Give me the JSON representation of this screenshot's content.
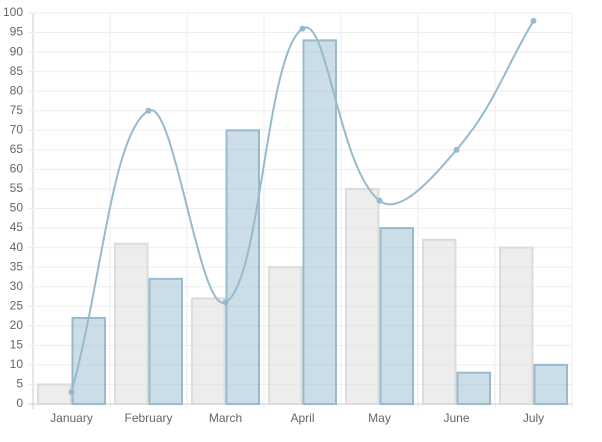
{
  "chart_data": {
    "type": "bar",
    "categories": [
      "January",
      "February",
      "March",
      "April",
      "May",
      "June",
      "July"
    ],
    "series": [
      {
        "type": "bar",
        "color": "#dcdcdc",
        "values": [
          5,
          41,
          27,
          35,
          55,
          42,
          40
        ]
      },
      {
        "type": "bar",
        "color": "#97bbcd",
        "values": [
          22,
          32,
          70,
          93,
          45,
          8,
          10
        ]
      },
      {
        "type": "line",
        "color": "#97bbcd",
        "values": [
          3,
          75,
          26,
          96,
          52,
          65,
          98
        ]
      }
    ],
    "ylim": [
      0,
      100
    ],
    "yticks": [
      0,
      5,
      10,
      15,
      20,
      25,
      30,
      35,
      40,
      45,
      50,
      55,
      60,
      65,
      70,
      75,
      80,
      85,
      90,
      95,
      100
    ],
    "grid": true
  }
}
